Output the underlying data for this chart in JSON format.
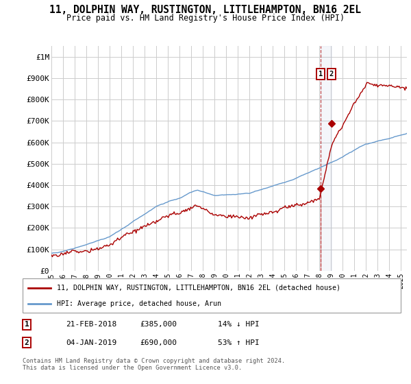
{
  "title": "11, DOLPHIN WAY, RUSTINGTON, LITTLEHAMPTON, BN16 2EL",
  "subtitle": "Price paid vs. HM Land Registry's House Price Index (HPI)",
  "ylabel_ticks": [
    0,
    100000,
    200000,
    300000,
    400000,
    500000,
    600000,
    700000,
    800000,
    900000,
    1000000
  ],
  "ylabel_labels": [
    "£0",
    "£100K",
    "£200K",
    "£300K",
    "£400K",
    "£500K",
    "£600K",
    "£700K",
    "£800K",
    "£900K",
    "£1M"
  ],
  "ylim": [
    0,
    1050000
  ],
  "xlim_start": 1995.0,
  "xlim_end": 2025.5,
  "red_line_color": "#aa0000",
  "blue_line_color": "#6699cc",
  "point1_date": 2018.12,
  "point1_value": 385000,
  "point2_date": 2019.01,
  "point2_value": 690000,
  "legend_label1": "11, DOLPHIN WAY, RUSTINGTON, LITTLEHAMPTON, BN16 2EL (detached house)",
  "legend_label2": "HPI: Average price, detached house, Arun",
  "footnote1_date": "21-FEB-2018",
  "footnote1_price": "£385,000",
  "footnote1_hpi": "14% ↓ HPI",
  "footnote2_date": "04-JAN-2019",
  "footnote2_price": "£690,000",
  "footnote2_hpi": "53% ↑ HPI",
  "copyright_text": "Contains HM Land Registry data © Crown copyright and database right 2024.\nThis data is licensed under the Open Government Licence v3.0.",
  "background_color": "#ffffff",
  "grid_color": "#cccccc"
}
